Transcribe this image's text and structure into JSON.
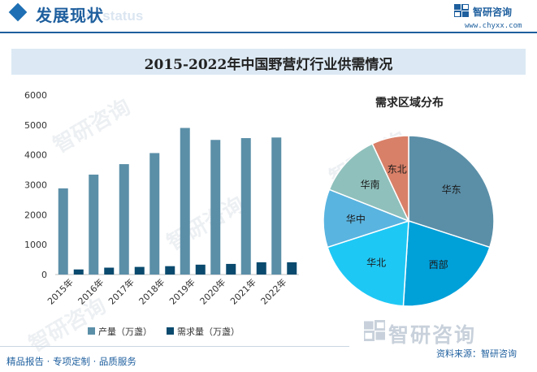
{
  "header": {
    "section_title": "发展现状",
    "section_sub": "ent status",
    "brand_name": "智研咨询",
    "brand_url": "www.chyxx.com"
  },
  "chart_title": "2015-2022年中国野营灯行业供需情况",
  "colors": {
    "production": "#5b8fa8",
    "demand": "#0a4a6e",
    "accent": "#1e5f9e"
  },
  "chart_data": [
    {
      "type": "bar",
      "categories": [
        "2015年",
        "2016年",
        "2017年",
        "2018年",
        "2019年",
        "2020年",
        "2021年",
        "2022年"
      ],
      "series": [
        {
          "name": "产量（万盏）",
          "values": [
            2880,
            3340,
            3690,
            4060,
            4900,
            4500,
            4560,
            4580
          ]
        },
        {
          "name": "需求量（万盏）",
          "values": [
            170,
            230,
            255,
            280,
            330,
            355,
            410,
            410
          ]
        }
      ],
      "yticks": [
        "0",
        "1000",
        "2000",
        "3000",
        "4000",
        "5000",
        "6000"
      ],
      "ylim": [
        0,
        6000
      ],
      "grid": false,
      "legend": "bottom"
    },
    {
      "type": "pie",
      "title": "需求区域分布",
      "categories": [
        "华东",
        "西部",
        "华北",
        "华中",
        "华南",
        "东北"
      ],
      "values": [
        30,
        21,
        19,
        11,
        12,
        7
      ],
      "colors": [
        "#5b8fa8",
        "#00a0d9",
        "#1ec8f5",
        "#5ab4e0",
        "#8fc0bc",
        "#d98068"
      ]
    }
  ],
  "watermark": "智研咨询",
  "footer": {
    "left": "精品报告 · 专项定制 · 品质服务",
    "source": "资料来源：智研咨询"
  }
}
